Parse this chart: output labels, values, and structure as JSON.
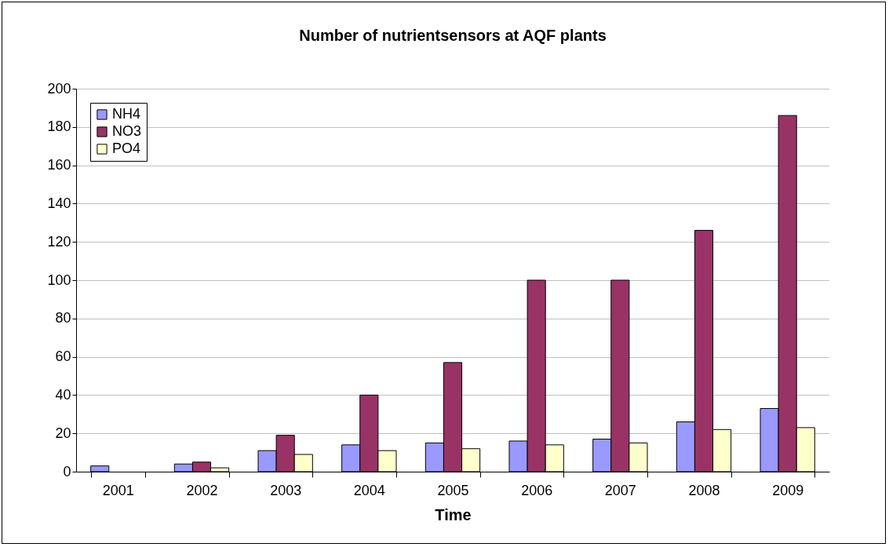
{
  "chart_data": {
    "type": "bar",
    "title": "Number of nutrientsensors at AQF plants",
    "xlabel": "Time",
    "categories": [
      "2001",
      "2002",
      "2003",
      "2004",
      "2005",
      "2006",
      "2007",
      "2008",
      "2009"
    ],
    "series": [
      {
        "name": "NH4",
        "color": "#9999ff",
        "values": [
          3,
          4,
          11,
          14,
          15,
          16,
          17,
          26,
          33
        ]
      },
      {
        "name": "NO3",
        "color": "#993366",
        "values": [
          null,
          5,
          19,
          40,
          57,
          100,
          100,
          126,
          186
        ]
      },
      {
        "name": "PO4",
        "color": "#ffffcc",
        "values": [
          null,
          2,
          9,
          11,
          12,
          14,
          15,
          22,
          23
        ]
      }
    ],
    "ylim": [
      0,
      200
    ],
    "yticks": [
      0,
      20,
      40,
      60,
      80,
      100,
      120,
      140,
      160,
      180,
      200
    ],
    "grid": "y",
    "legend": "top left"
  }
}
